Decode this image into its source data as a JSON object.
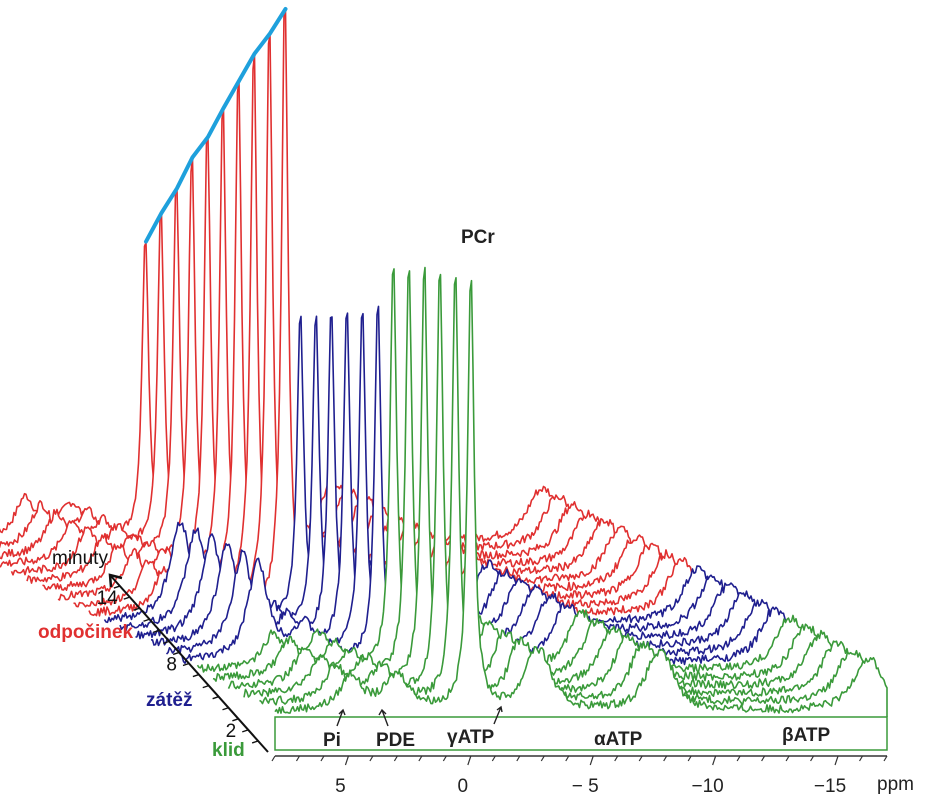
{
  "chart_data": {
    "type": "line",
    "title": "",
    "xlabel": "ppm",
    "ylabel": "",
    "time_axis_label": "minuty",
    "x_ticks": [
      5,
      0,
      -5,
      -10,
      -15
    ],
    "x_tick_labels": [
      "5",
      "0",
      "− 5",
      "−10",
      "−15"
    ],
    "xlim": [
      8,
      -17
    ],
    "time_ticks": [
      {
        "value": 2,
        "label": "2"
      },
      {
        "value": 8,
        "label": "8"
      },
      {
        "value": 14,
        "label": "14"
      }
    ],
    "phases": [
      {
        "name": "klid",
        "color": "#3a9a3a",
        "spectra": 6,
        "pcr_height": 0.63
      },
      {
        "name": "zátěž",
        "color": "#1f1f8f",
        "spectra": 6,
        "pcr_height": 0.44
      },
      {
        "name": "odpočinek",
        "color": "#e03030",
        "spectra": 10,
        "pcr_height": 0.89
      }
    ],
    "peaks": [
      {
        "name": "PCr",
        "ppm": 0
      },
      {
        "name": "Pi",
        "ppm": 4.9
      },
      {
        "name": "PDE",
        "ppm": 3.0
      },
      {
        "name": "γATP",
        "ppm": -2.5
      },
      {
        "name": "αATP",
        "ppm": -7.5
      },
      {
        "name": "βATP",
        "ppm": -16
      }
    ],
    "recovery_fit_color": "#1ea0dc"
  }
}
